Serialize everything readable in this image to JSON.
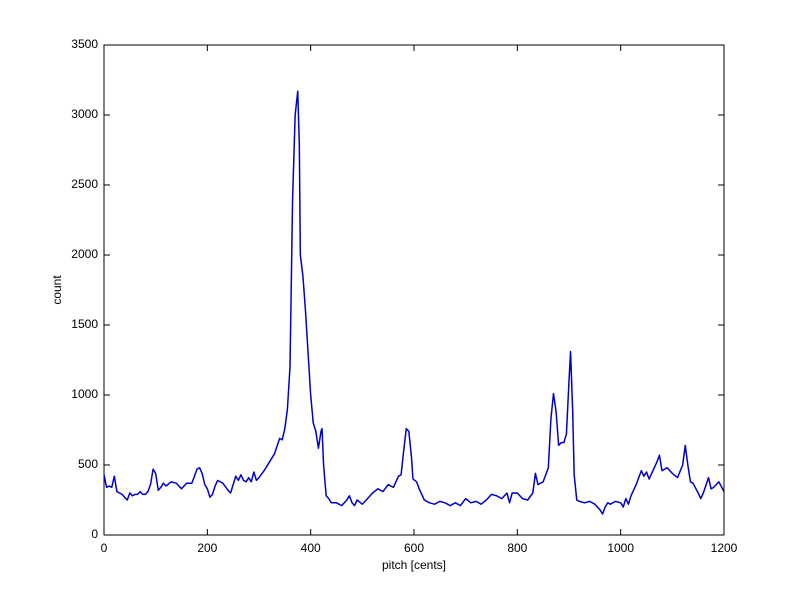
{
  "chart_data": {
    "type": "line",
    "xlabel": "pitch [cents]",
    "ylabel": "count",
    "xlim": [
      0,
      1200
    ],
    "xticks": [
      0,
      200,
      400,
      600,
      800,
      1000,
      1200
    ],
    "ylim": [
      0,
      3500
    ],
    "yticks": [
      0,
      500,
      1000,
      1500,
      2000,
      2500,
      3000,
      3500
    ],
    "grid": false,
    "series": [
      {
        "color": "#0000cc",
        "x": [
          0,
          5,
          10,
          15,
          20,
          25,
          30,
          35,
          40,
          45,
          50,
          55,
          60,
          65,
          70,
          75,
          80,
          85,
          90,
          95,
          100,
          105,
          110,
          115,
          120,
          130,
          140,
          150,
          160,
          170,
          180,
          185,
          190,
          195,
          200,
          205,
          210,
          215,
          220,
          230,
          240,
          245,
          250,
          255,
          260,
          265,
          270,
          275,
          280,
          285,
          290,
          295,
          300,
          310,
          320,
          330,
          340,
          345,
          350,
          355,
          360,
          365,
          370,
          375,
          378,
          380,
          385,
          390,
          395,
          400,
          405,
          410,
          415,
          420,
          422,
          425,
          430,
          435,
          440,
          450,
          460,
          470,
          475,
          480,
          485,
          490,
          500,
          510,
          520,
          530,
          540,
          550,
          560,
          570,
          575,
          580,
          585,
          590,
          595,
          598,
          605,
          610,
          620,
          630,
          640,
          650,
          660,
          670,
          680,
          690,
          700,
          710,
          720,
          730,
          740,
          750,
          760,
          770,
          780,
          785,
          790,
          800,
          810,
          820,
          830,
          835,
          840,
          850,
          860,
          865,
          870,
          875,
          880,
          885,
          890,
          895,
          900,
          903,
          907,
          910,
          915,
          920,
          930,
          940,
          950,
          960,
          965,
          970,
          975,
          980,
          990,
          1000,
          1005,
          1010,
          1015,
          1020,
          1030,
          1040,
          1045,
          1050,
          1055,
          1060,
          1070,
          1075,
          1080,
          1090,
          1100,
          1110,
          1120,
          1125,
          1130,
          1135,
          1140,
          1150,
          1155,
          1160,
          1170,
          1175,
          1180,
          1190,
          1200
        ],
        "values": [
          430,
          340,
          350,
          340,
          420,
          310,
          300,
          290,
          270,
          250,
          300,
          280,
          290,
          290,
          310,
          290,
          290,
          310,
          360,
          470,
          440,
          320,
          340,
          370,
          350,
          380,
          370,
          330,
          370,
          370,
          470,
          480,
          440,
          360,
          330,
          270,
          290,
          350,
          390,
          370,
          320,
          300,
          360,
          420,
          390,
          430,
          390,
          380,
          410,
          380,
          450,
          390,
          410,
          460,
          520,
          580,
          690,
          680,
          760,
          900,
          1200,
          2400,
          3000,
          3170,
          2800,
          2000,
          1850,
          1600,
          1300,
          1000,
          800,
          740,
          620,
          740,
          760,
          500,
          280,
          260,
          230,
          230,
          210,
          250,
          280,
          230,
          210,
          250,
          220,
          260,
          300,
          330,
          310,
          360,
          340,
          420,
          430,
          600,
          760,
          740,
          560,
          400,
          380,
          330,
          250,
          230,
          220,
          240,
          230,
          210,
          230,
          210,
          260,
          230,
          240,
          220,
          250,
          290,
          280,
          260,
          300,
          230,
          300,
          300,
          260,
          250,
          300,
          440,
          360,
          380,
          480,
          830,
          1010,
          880,
          640,
          660,
          660,
          720,
          1100,
          1310,
          900,
          430,
          250,
          240,
          230,
          240,
          220,
          180,
          150,
          200,
          230,
          220,
          240,
          230,
          200,
          260,
          220,
          280,
          360,
          460,
          420,
          450,
          400,
          440,
          520,
          570,
          460,
          480,
          440,
          410,
          500,
          640,
          500,
          380,
          370,
          300,
          260,
          300,
          410,
          330,
          340,
          380,
          310
        ]
      }
    ]
  }
}
